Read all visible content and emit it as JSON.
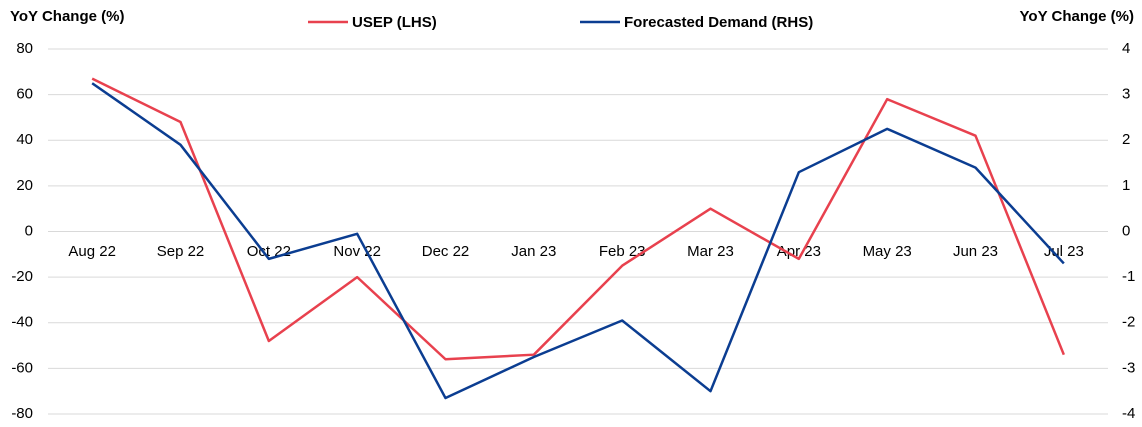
{
  "chart_data": {
    "type": "line",
    "y_label": "YoY Change (%)",
    "y2_label": "YoY Change (%)",
    "categories": [
      "Aug 22",
      "Sep 22",
      "Oct 22",
      "Nov 22",
      "Dec 22",
      "Jan 23",
      "Feb 23",
      "Mar 23",
      "Apr 23",
      "May 23",
      "Jun 23",
      "Jul 23"
    ],
    "series": [
      {
        "name": "USEP (LHS)",
        "color": "#e8414e",
        "values": [
          67,
          48,
          -48,
          -20,
          -56,
          -54,
          -15,
          10,
          -12,
          58,
          42,
          -54
        ]
      },
      {
        "name": "Forecasted Demand (RHS)",
        "color": "#0b3d91",
        "axis": "y2",
        "values": [
          3.25,
          1.9,
          -0.6,
          -0.05,
          -3.65,
          -2.75,
          -1.95,
          -3.5,
          1.3,
          2.25,
          1.4,
          -0.7
        ]
      }
    ],
    "ylim": [
      -80,
      80
    ],
    "yticks": [
      -80,
      -60,
      -40,
      -20,
      0,
      20,
      40,
      60,
      80
    ],
    "y2lim": [
      -4,
      4
    ],
    "y2ticks": [
      -4,
      -3,
      -2,
      -1,
      0,
      1,
      2,
      3,
      4
    ],
    "grid": true,
    "legend": "top"
  }
}
